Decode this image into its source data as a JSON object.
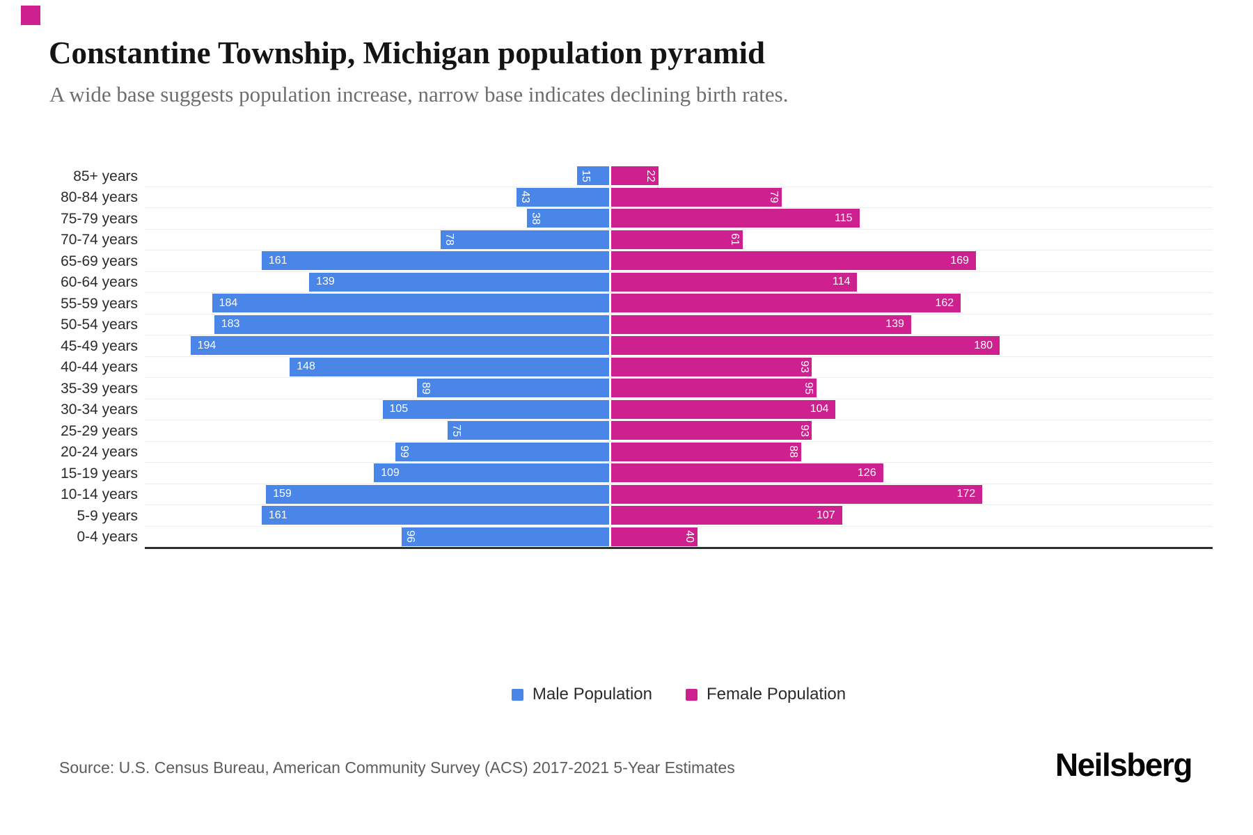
{
  "brand": {
    "accent_color": "#CE218F"
  },
  "header": {
    "title": "Constantine Township, Michigan population pyramid",
    "subtitle": "A wide base suggests population increase, narrow base indicates declining birth rates."
  },
  "chart_data": {
    "type": "bar",
    "subtype": "population-pyramid",
    "orientation": "horizontal",
    "title": "Constantine Township, Michigan population pyramid",
    "categories": [
      "85+ years",
      "80-84 years",
      "75-79 years",
      "70-74 years",
      "65-69 years",
      "60-64 years",
      "55-59 years",
      "50-54 years",
      "45-49 years",
      "40-44 years",
      "35-39 years",
      "30-34 years",
      "25-29 years",
      "20-24 years",
      "15-19 years",
      "10-14 years",
      "5-9 years",
      "0-4 years"
    ],
    "series": [
      {
        "name": "Male Population",
        "side": "left",
        "color": "#4A86E8",
        "values": [
          15,
          43,
          38,
          78,
          161,
          139,
          184,
          183,
          194,
          148,
          89,
          105,
          75,
          99,
          109,
          159,
          161,
          96
        ]
      },
      {
        "name": "Female Population",
        "side": "right",
        "color": "#CE218F",
        "values": [
          22,
          79,
          115,
          61,
          169,
          114,
          162,
          139,
          180,
          93,
          95,
          104,
          93,
          88,
          126,
          172,
          107,
          40
        ]
      }
    ],
    "value_labels": {
      "color": "#ffffff",
      "position": "inside outer end",
      "rotated_when_value_below": 100
    },
    "grid": true,
    "legend_position": "bottom"
  },
  "footer": {
    "source": "Source: U.S. Census Bureau, American Community Survey (ACS) 2017-2021 5-Year Estimates",
    "logo": "Neilsberg"
  }
}
